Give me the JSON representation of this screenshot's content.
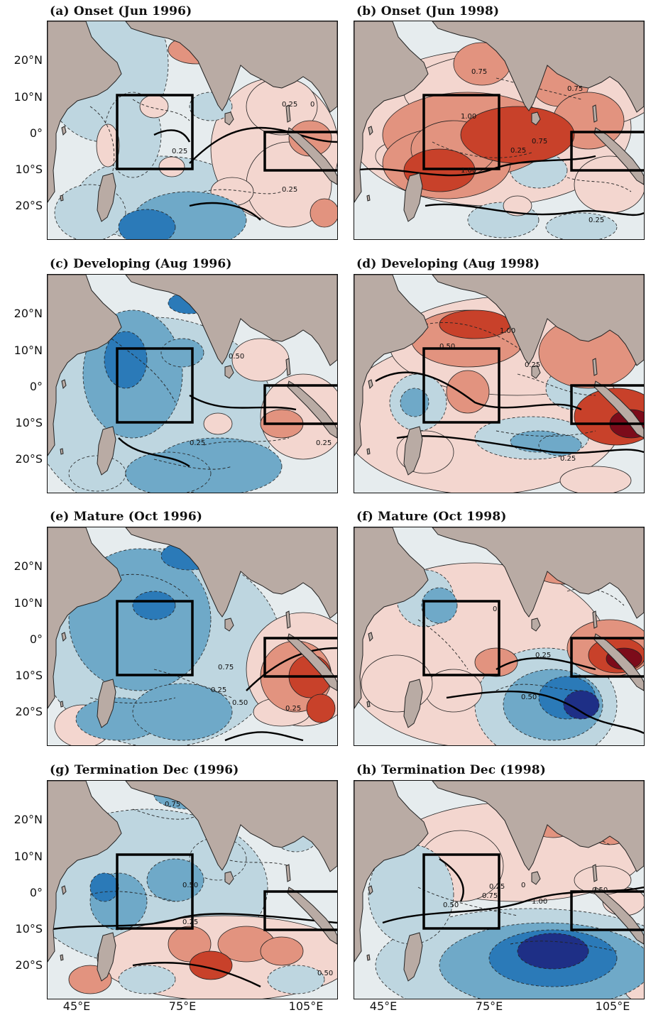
{
  "panels": [
    {
      "title": "(a) Onset (Jun 1996)",
      "year": "1996",
      "stage": "onset",
      "contour_labels": [
        "0.25",
        "0",
        "0.25",
        "0.25"
      ]
    },
    {
      "title": "(b) Onset (Jun 1998)",
      "year": "1998",
      "stage": "onset",
      "contour_labels": [
        "0.75",
        "0.75",
        "1.00",
        "0.75",
        "0.25",
        "1.00",
        "0.25"
      ]
    },
    {
      "title": "(c) Developing (Aug 1996)",
      "year": "1996",
      "stage": "developing",
      "contour_labels": [
        "0.50",
        "0.25",
        "0.25"
      ]
    },
    {
      "title": "(d) Developing (Aug 1998)",
      "year": "1998",
      "stage": "developing",
      "contour_labels": [
        "1.00",
        "0.50",
        "0.25",
        "0.25"
      ]
    },
    {
      "title": "(e) Mature (Oct 1996)",
      "year": "1996",
      "stage": "mature",
      "contour_labels": [
        "0.75",
        "0.25",
        "0.50",
        "0.25"
      ]
    },
    {
      "title": "(f) Mature (Oct 1998)",
      "year": "1998",
      "stage": "mature",
      "contour_labels": [
        "0",
        "0.25",
        "0.50"
      ]
    },
    {
      "title": "(g) Termination Dec (1996)",
      "year": "1996",
      "stage": "termination",
      "contour_labels": [
        "0.75",
        "0.50",
        "0.25",
        "0.50"
      ]
    },
    {
      "title": "(h) Termination Dec (1998)",
      "year": "1998",
      "stage": "termination",
      "contour_labels": [
        "0.25",
        "0",
        "0.75",
        "1.00",
        "0.50",
        "0.50"
      ]
    }
  ],
  "lat_labels": [
    "20°N",
    "10°N",
    "0°",
    "10°S",
    "20°S"
  ],
  "lon_labels": [
    "45°E",
    "75°E",
    "105°E"
  ],
  "colors": {
    "land": "#b9aba4",
    "positive_light": "#f3d6cf",
    "positive_medium": "#e2937f",
    "positive_strong": "#c8412a",
    "positive_extreme": "#7c0b1a",
    "neutral": "#e6ecee",
    "negative_light": "#bed6e0",
    "negative_medium": "#6fa9c8",
    "negative_strong": "#2b7ab8",
    "negative_extreme": "#1e2f86"
  }
}
